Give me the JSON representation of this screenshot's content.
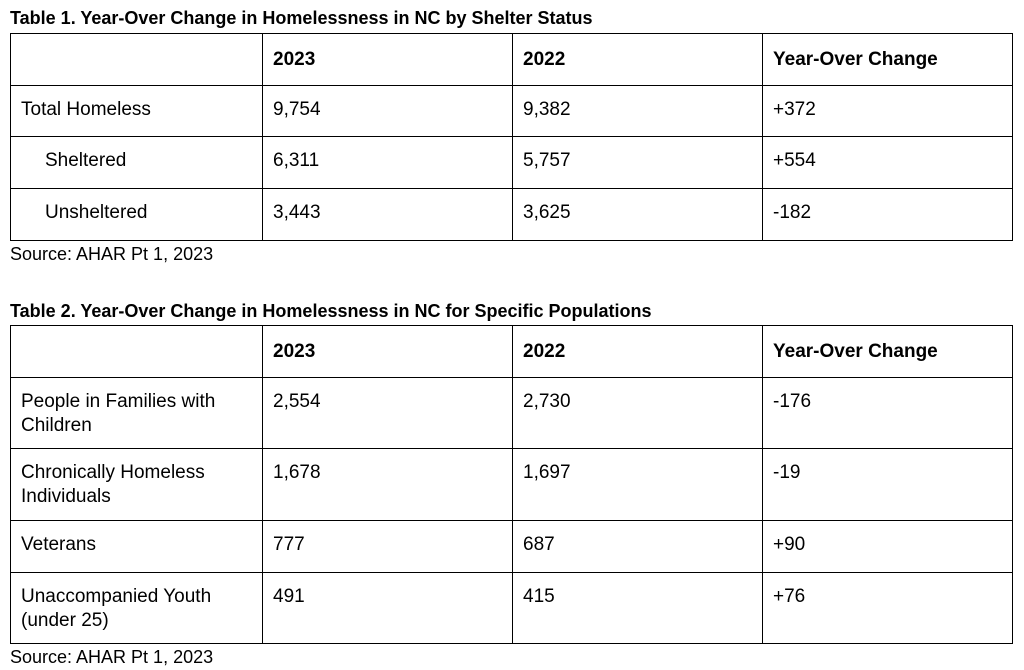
{
  "table1": {
    "title": "Table 1. Year-Over Change in Homelessness in NC by Shelter Status",
    "header": [
      "2023",
      "2022",
      "Year-Over Change"
    ],
    "rows": [
      [
        "Total Homeless",
        "9,754",
        "9,382",
        "+372"
      ],
      [
        "Sheltered",
        "6,311",
        "5,757",
        "+554"
      ],
      [
        "Unsheltered",
        "3,443",
        "3,625",
        "-182"
      ]
    ],
    "source": "Source: AHAR Pt 1, 2023"
  },
  "table2": {
    "title": "Table 2. Year-Over Change in Homelessness in NC for Specific Populations",
    "header": [
      "2023",
      "2022",
      "Year-Over Change"
    ],
    "rows": [
      [
        "People in Families with Children",
        "2,554",
        "2,730",
        "-176"
      ],
      [
        "Chronically Homeless Individuals",
        "1,678",
        "1,697",
        "-19"
      ],
      [
        "Veterans",
        "777",
        "687",
        "+90"
      ],
      [
        "Unaccompanied Youth (under 25)",
        "491",
        "415",
        "+76"
      ]
    ],
    "source": "Source: AHAR Pt 1, 2023"
  }
}
